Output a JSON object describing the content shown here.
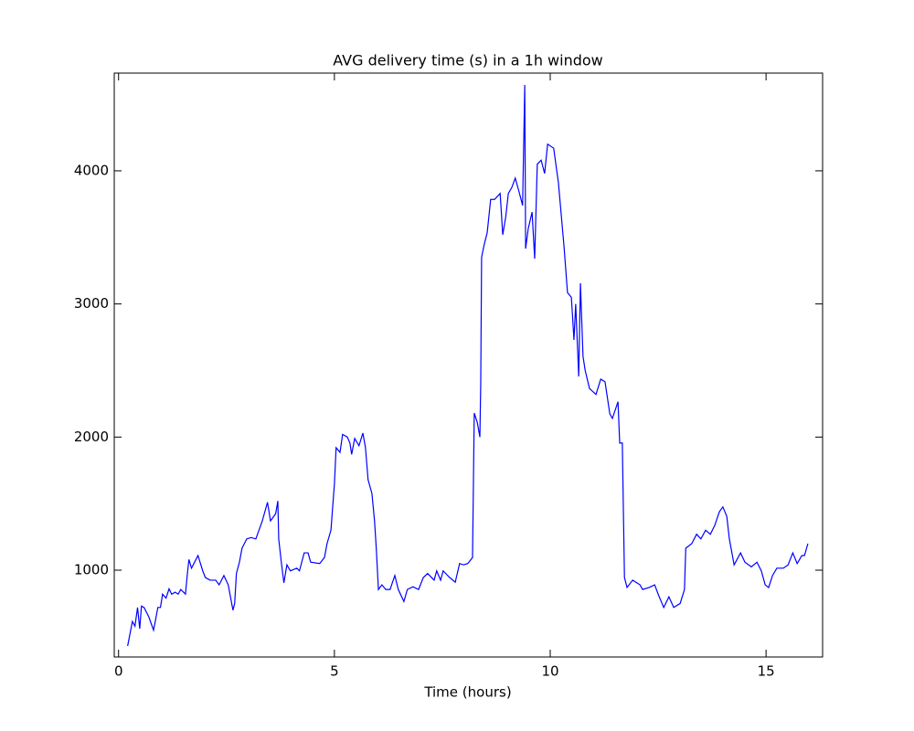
{
  "chart_data": {
    "type": "line",
    "title": "AVG delivery time (s) in a 1h window",
    "x_label": "Time (hours)",
    "xlim": [
      -0.1,
      16.31
    ],
    "ylim": [
      348,
      4734
    ],
    "xticks": [
      0,
      5,
      10,
      15
    ],
    "yticks": [
      1000,
      2000,
      3000,
      4000
    ],
    "grid": false,
    "series": [
      {
        "color": "#0000ff",
        "x": [
          0.21,
          0.32,
          0.38,
          0.44,
          0.49,
          0.53,
          0.59,
          0.7,
          0.81,
          0.85,
          0.91,
          0.97,
          1.02,
          1.1,
          1.17,
          1.23,
          1.31,
          1.38,
          1.44,
          1.55,
          1.59,
          1.63,
          1.69,
          1.84,
          1.95,
          2.01,
          2.12,
          2.25,
          2.33,
          2.44,
          2.54,
          2.65,
          2.69,
          2.73,
          2.8,
          2.86,
          2.97,
          3.07,
          3.18,
          3.33,
          3.45,
          3.52,
          3.64,
          3.69,
          3.71,
          3.77,
          3.83,
          3.9,
          3.98,
          4.13,
          4.19,
          4.3,
          4.39,
          4.45,
          4.66,
          4.77,
          4.83,
          4.92,
          4.96,
          5.0,
          5.04,
          5.13,
          5.19,
          5.3,
          5.36,
          5.4,
          5.47,
          5.57,
          5.66,
          5.72,
          5.78,
          5.87,
          5.93,
          5.97,
          6.02,
          6.1,
          6.19,
          6.29,
          6.4,
          6.48,
          6.61,
          6.69,
          6.82,
          6.95,
          7.06,
          7.16,
          7.31,
          7.37,
          7.46,
          7.52,
          7.67,
          7.8,
          7.9,
          7.99,
          8.09,
          8.2,
          8.24,
          8.31,
          8.37,
          8.39,
          8.41,
          8.47,
          8.54,
          8.62,
          8.71,
          8.84,
          8.9,
          8.97,
          9.03,
          9.11,
          9.19,
          9.28,
          9.36,
          9.41,
          9.43,
          9.49,
          9.58,
          9.64,
          9.7,
          9.79,
          9.87,
          9.94,
          10.08,
          10.19,
          10.32,
          10.4,
          10.49,
          10.55,
          10.59,
          10.66,
          10.7,
          10.76,
          10.81,
          10.91,
          11.06,
          11.17,
          11.27,
          11.38,
          11.44,
          11.57,
          11.61,
          11.67,
          11.72,
          11.78,
          11.91,
          12.08,
          12.14,
          12.29,
          12.42,
          12.5,
          12.63,
          12.75,
          12.86,
          13.01,
          13.11,
          13.14,
          13.28,
          13.39,
          13.49,
          13.6,
          13.71,
          13.81,
          13.92,
          14.0,
          14.09,
          14.15,
          14.26,
          14.41,
          14.51,
          14.66,
          14.79,
          14.89,
          14.98,
          15.06,
          15.15,
          15.25,
          15.4,
          15.51,
          15.62,
          15.72,
          15.83,
          15.89,
          15.97
        ],
        "values": [
          430,
          615,
          580,
          720,
          560,
          730,
          720,
          650,
          550,
          615,
          720,
          720,
          820,
          790,
          860,
          820,
          835,
          820,
          855,
          820,
          960,
          1080,
          1015,
          1110,
          995,
          945,
          925,
          925,
          890,
          960,
          890,
          700,
          750,
          975,
          1060,
          1165,
          1235,
          1245,
          1235,
          1370,
          1510,
          1370,
          1425,
          1520,
          1235,
          1060,
          905,
          1040,
          995,
          1015,
          995,
          1130,
          1130,
          1060,
          1050,
          1095,
          1200,
          1300,
          1475,
          1645,
          1920,
          1885,
          2020,
          2000,
          1955,
          1870,
          1990,
          1935,
          2030,
          1920,
          1680,
          1575,
          1370,
          1165,
          855,
          890,
          855,
          855,
          960,
          855,
          765,
          855,
          875,
          855,
          945,
          975,
          925,
          995,
          925,
          995,
          945,
          910,
          1050,
          1040,
          1050,
          1095,
          2180,
          2110,
          2000,
          2400,
          3350,
          3445,
          3535,
          3785,
          3785,
          3830,
          3520,
          3655,
          3830,
          3875,
          3945,
          3840,
          3740,
          4645,
          3415,
          3565,
          3690,
          3340,
          4050,
          4080,
          3980,
          4200,
          4170,
          3910,
          3430,
          3085,
          3050,
          2730,
          3000,
          2455,
          3155,
          2605,
          2500,
          2365,
          2320,
          2435,
          2415,
          2175,
          2140,
          2265,
          1955,
          1955,
          945,
          870,
          925,
          890,
          855,
          870,
          890,
          820,
          720,
          800,
          720,
          750,
          855,
          1165,
          1200,
          1270,
          1235,
          1300,
          1270,
          1335,
          1440,
          1475,
          1405,
          1235,
          1040,
          1130,
          1060,
          1025,
          1060,
          995,
          890,
          870,
          960,
          1015,
          1015,
          1040,
          1130,
          1050,
          1110,
          1110,
          1200
        ]
      }
    ]
  }
}
